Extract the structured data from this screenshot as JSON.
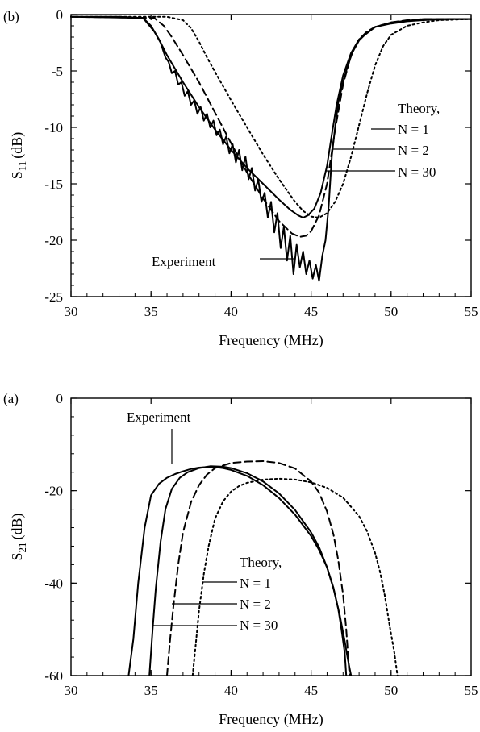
{
  "chart_data": [
    {
      "type": "line",
      "panel_label": "(b)",
      "xlabel": "Frequency (MHz)",
      "ylabel_main": "S",
      "ylabel_sub": "11",
      "ylabel_unit": "(dB)",
      "xlim": [
        30,
        55
      ],
      "ylim": [
        -25,
        0
      ],
      "xticks": [
        30,
        35,
        40,
        45,
        50,
        55
      ],
      "yticks": [
        0,
        -5,
        -10,
        -15,
        -20,
        -25
      ],
      "xtick_labels": [
        "30",
        "35",
        "40",
        "45",
        "50",
        "55"
      ],
      "ytick_labels": [
        "0",
        "-5",
        "-10",
        "-15",
        "-20",
        "-25"
      ],
      "grid": false,
      "series": [
        {
          "name": "Experiment",
          "style": "solid",
          "x": [
            30,
            33,
            34.5,
            35.2,
            35.6,
            35.9,
            36.1,
            36.3,
            36.5,
            36.7,
            36.9,
            37.1,
            37.3,
            37.5,
            37.7,
            37.9,
            38.1,
            38.3,
            38.5,
            38.7,
            38.9,
            39.1,
            39.3,
            39.5,
            39.7,
            39.9,
            40.1,
            40.3,
            40.5,
            40.7,
            40.9,
            41.1,
            41.3,
            41.5,
            41.7,
            41.9,
            42.1,
            42.3,
            42.5,
            42.7,
            42.9,
            43.1,
            43.3,
            43.5,
            43.7,
            43.9,
            44.1,
            44.3,
            44.5,
            44.7,
            44.9,
            45.1,
            45.3,
            45.5,
            45.7,
            45.9,
            46.1,
            46.3,
            46.5,
            46.7,
            47.0,
            47.3,
            47.6,
            48.0,
            48.5,
            49.0,
            50.0,
            51.0,
            52.0,
            53.5,
            55.0
          ],
          "y": [
            -0.2,
            -0.2,
            -0.3,
            -1.5,
            -2.5,
            -3.8,
            -4.2,
            -5.2,
            -5.0,
            -6.2,
            -6.0,
            -7.2,
            -6.8,
            -8.0,
            -7.6,
            -8.8,
            -8.2,
            -9.4,
            -8.8,
            -10.0,
            -9.4,
            -10.7,
            -10.2,
            -11.5,
            -10.8,
            -12.3,
            -11.5,
            -13.1,
            -12.0,
            -13.8,
            -12.6,
            -14.6,
            -13.6,
            -15.6,
            -14.6,
            -16.6,
            -15.8,
            -18.0,
            -16.6,
            -19.3,
            -17.6,
            -20.7,
            -18.8,
            -21.8,
            -19.6,
            -23.0,
            -20.4,
            -22.4,
            -21.0,
            -23.0,
            -21.8,
            -23.4,
            -22.2,
            -23.6,
            -21.4,
            -20.0,
            -17.0,
            -12.5,
            -10.0,
            -7.8,
            -6.0,
            -4.5,
            -3.3,
            -2.3,
            -1.6,
            -1.1,
            -0.8,
            -0.6,
            -0.5,
            -0.4,
            -0.4
          ]
        },
        {
          "name": "N = 1",
          "style": "dotted",
          "x": [
            30,
            36.0,
            37.0,
            37.5,
            38.0,
            38.5,
            39.0,
            40.0,
            41.0,
            42.0,
            43.0,
            44.0,
            44.5,
            45.0,
            45.5,
            46.0,
            46.5,
            47.0,
            47.5,
            48.0,
            48.5,
            49.0,
            49.5,
            50.0,
            51.0,
            52.0,
            53.0,
            55.0
          ],
          "y": [
            -0.2,
            -0.2,
            -0.5,
            -1.2,
            -2.4,
            -3.8,
            -5.1,
            -7.6,
            -10.0,
            -12.4,
            -14.6,
            -16.6,
            -17.4,
            -17.9,
            -18.0,
            -17.6,
            -16.6,
            -15.0,
            -12.6,
            -9.8,
            -7.0,
            -4.5,
            -2.8,
            -1.8,
            -1.0,
            -0.7,
            -0.5,
            -0.4
          ]
        },
        {
          "name": "N = 2",
          "style": "dashed",
          "x": [
            30,
            35.2,
            35.8,
            36.3,
            37.0,
            38.0,
            39.0,
            40.0,
            41.0,
            42.0,
            43.0,
            43.8,
            44.3,
            44.7,
            45.0,
            45.5,
            46.0,
            46.5,
            47.0,
            47.5,
            48.0,
            48.5,
            49.0,
            50.0,
            51.0,
            52.0,
            55.0
          ],
          "y": [
            -0.2,
            -0.3,
            -1.0,
            -2.0,
            -3.6,
            -6.0,
            -8.7,
            -11.4,
            -14.0,
            -16.3,
            -18.3,
            -19.4,
            -19.7,
            -19.6,
            -19.2,
            -17.8,
            -15.0,
            -10.2,
            -6.2,
            -3.6,
            -2.2,
            -1.5,
            -1.1,
            -0.7,
            -0.5,
            -0.4,
            -0.4
          ]
        },
        {
          "name": "N = 30",
          "style": "solid",
          "x": [
            30,
            34.5,
            35.0,
            35.5,
            36.0,
            37.0,
            38.0,
            39.0,
            40.0,
            41.0,
            42.0,
            43.0,
            43.7,
            44.2,
            44.5,
            44.8,
            45.2,
            45.6,
            46.0,
            46.3,
            46.6,
            47.0,
            47.5,
            48.0,
            49.0,
            50.0,
            52.0,
            55.0
          ],
          "y": [
            -0.2,
            -0.3,
            -1.0,
            -2.2,
            -3.6,
            -6.0,
            -8.2,
            -10.2,
            -12.0,
            -13.6,
            -15.0,
            -16.4,
            -17.3,
            -17.8,
            -18.0,
            -17.8,
            -17.2,
            -15.8,
            -13.4,
            -10.6,
            -8.0,
            -5.4,
            -3.4,
            -2.2,
            -1.1,
            -0.7,
            -0.4,
            -0.4
          ]
        }
      ],
      "annotations": {
        "theory_header": "Theory,",
        "labels": [
          "N = 1",
          "N = 2",
          "N = 30"
        ],
        "experiment": "Experiment"
      }
    },
    {
      "type": "line",
      "panel_label": "(a)",
      "xlabel": "Frequency (MHz)",
      "ylabel_main": "S",
      "ylabel_sub": "21",
      "ylabel_unit": "(dB)",
      "xlim": [
        30,
        55
      ],
      "ylim": [
        -60,
        0
      ],
      "xticks": [
        30,
        35,
        40,
        45,
        50,
        55
      ],
      "yticks": [
        0,
        -20,
        -40,
        -60
      ],
      "xtick_labels": [
        "30",
        "35",
        "40",
        "45",
        "50",
        "55"
      ],
      "ytick_labels": [
        "0",
        "-20",
        "-40",
        "-60"
      ],
      "grid": false,
      "series": [
        {
          "name": "Experiment",
          "style": "solid",
          "x": [
            33.6,
            33.9,
            34.2,
            34.6,
            35.0,
            35.5,
            36.0,
            36.5,
            37.0,
            37.5,
            38.0,
            38.5,
            39.0,
            39.5,
            40.0,
            41.0,
            42.0,
            43.0,
            44.0,
            45.0,
            45.5,
            46.0,
            46.4,
            46.7,
            46.9,
            47.1,
            47.2
          ],
          "y": [
            -60,
            -52,
            -40,
            -28,
            -21,
            -18.5,
            -17.2,
            -16.4,
            -15.8,
            -15.3,
            -15.0,
            -14.9,
            -14.9,
            -15.1,
            -15.5,
            -16.8,
            -18.8,
            -21.6,
            -25.2,
            -29.8,
            -32.8,
            -36.6,
            -41.0,
            -45.6,
            -50.0,
            -55.0,
            -60
          ]
        },
        {
          "name": "N = 1",
          "style": "dotted",
          "x": [
            37.6,
            37.8,
            38.0,
            38.3,
            38.6,
            39.0,
            39.5,
            40.0,
            40.5,
            41.0,
            42.0,
            43.0,
            44.0,
            45.0,
            46.0,
            47.0,
            48.0,
            48.5,
            49.0,
            49.3,
            49.6,
            49.9,
            50.2,
            50.4
          ],
          "y": [
            -60,
            -53,
            -46,
            -38,
            -32,
            -26,
            -22.3,
            -20.2,
            -19.0,
            -18.3,
            -17.6,
            -17.4,
            -17.6,
            -18.2,
            -19.4,
            -21.5,
            -25.5,
            -28.8,
            -33.5,
            -37.4,
            -42.6,
            -49.0,
            -55.0,
            -60
          ]
        },
        {
          "name": "N = 2",
          "style": "dashed",
          "x": [
            36.0,
            36.2,
            36.4,
            36.7,
            37.0,
            37.5,
            38.0,
            38.5,
            39.0,
            40.0,
            41.0,
            42.0,
            43.0,
            44.0,
            45.0,
            45.5,
            46.0,
            46.4,
            46.7,
            47.0,
            47.2,
            47.4
          ],
          "y": [
            -60,
            -52,
            -45,
            -36,
            -29,
            -22.5,
            -18.8,
            -16.5,
            -15.1,
            -14.0,
            -13.7,
            -13.6,
            -14.0,
            -15.2,
            -18.0,
            -20.4,
            -24.5,
            -29.5,
            -35.0,
            -42.5,
            -50.0,
            -60
          ]
        },
        {
          "name": "N = 30",
          "style": "solid",
          "x": [
            34.9,
            35.1,
            35.3,
            35.6,
            35.9,
            36.3,
            36.8,
            37.3,
            38.0,
            38.7,
            39.5,
            40.0,
            41.0,
            42.0,
            43.0,
            44.0,
            45.0,
            45.5,
            46.0,
            46.4,
            46.8,
            47.1,
            47.3,
            47.5
          ],
          "y": [
            -60,
            -50,
            -41,
            -31,
            -24,
            -19.6,
            -17.2,
            -16.0,
            -15.1,
            -14.7,
            -14.8,
            -15.1,
            -16.2,
            -18.0,
            -20.6,
            -24.2,
            -29.0,
            -32.2,
            -36.6,
            -41.2,
            -47.0,
            -52.5,
            -56.5,
            -60
          ]
        }
      ],
      "annotations": {
        "theory_header": "Theory,",
        "labels": [
          "N = 1",
          "N = 2",
          "N = 30"
        ],
        "experiment": "Experiment"
      }
    }
  ]
}
